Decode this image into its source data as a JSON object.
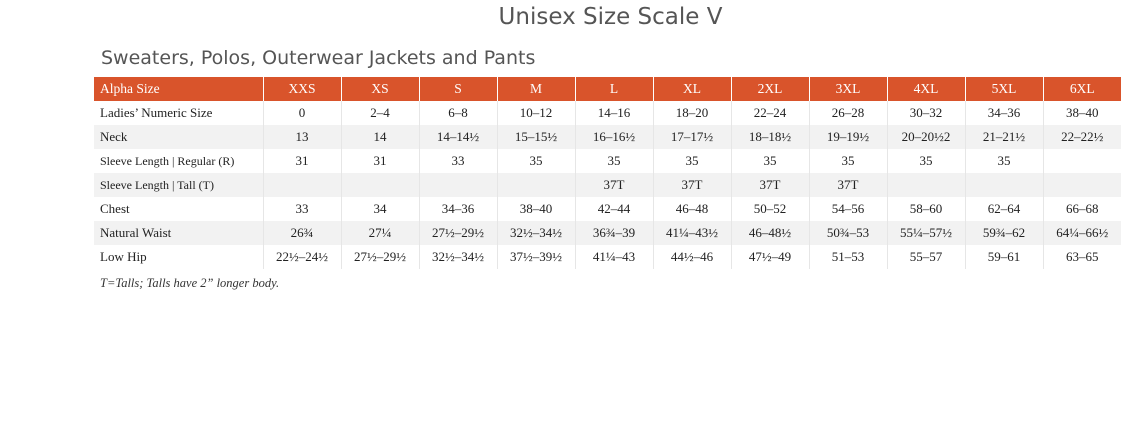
{
  "title": "Unisex Size Scale V",
  "section_title": "Sweaters, Polos, Outerwear Jackets and Pants",
  "table": {
    "header_label": "Alpha Size",
    "sizes": [
      "XXS",
      "XS",
      "S",
      "M",
      "L",
      "XL",
      "2XL",
      "3XL",
      "4XL",
      "5XL",
      "6XL"
    ],
    "rows": [
      {
        "label": "Ladies’ Numeric Size",
        "values": [
          "0",
          "2–4",
          "6–8",
          "10–12",
          "14–16",
          "18–20",
          "22–24",
          "26–28",
          "30–32",
          "34–36",
          "38–40"
        ]
      },
      {
        "label": "Neck",
        "values": [
          "13",
          "14",
          "14–14½",
          "15–15½",
          "16–16½",
          "17–17½",
          "18–18½",
          "19–19½",
          "20–20½2",
          "21–21½",
          "22–22½"
        ]
      },
      {
        "label": "Sleeve Length | Regular (R)",
        "values": [
          "31",
          "31",
          "33",
          "35",
          "35",
          "35",
          "35",
          "35",
          "35",
          "35",
          ""
        ]
      },
      {
        "label": "Sleeve Length | Tall (T)",
        "values": [
          "",
          "",
          "",
          "",
          "37T",
          "37T",
          "37T",
          "37T",
          "",
          "",
          ""
        ]
      },
      {
        "label": "Chest",
        "values": [
          "33",
          "34",
          "34–36",
          "38–40",
          "42–44",
          "46–48",
          "50–52",
          "54–56",
          "58–60",
          "62–64",
          "66–68"
        ]
      },
      {
        "label": "Natural Waist",
        "values": [
          "26¾",
          "27¼",
          "27½–29½",
          "32½–34½",
          "36¾–39",
          "41¼–43½",
          "46–48½",
          "50¾–53",
          "55¼–57½",
          "59¾–62",
          "64¼–66½"
        ]
      },
      {
        "label": "Low Hip",
        "values": [
          "22½–24½",
          "27½–29½",
          "32½–34½",
          "37½–39½",
          "41¼–43",
          "44½–46",
          "47½–49",
          "51–53",
          "55–57",
          "59–61",
          "63–65"
        ]
      }
    ]
  },
  "footnote": "T=Talls; Talls have 2” longer body.",
  "colors": {
    "header_bg": "#d9542b",
    "stripe_bg": "#f2f2f2",
    "title_text": "#555555"
  }
}
